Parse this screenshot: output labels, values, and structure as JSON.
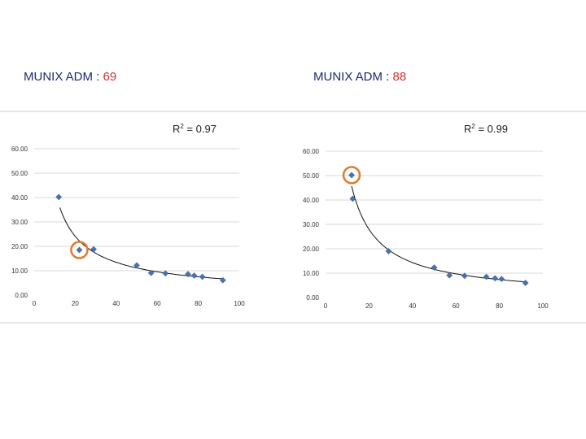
{
  "charts": [
    {
      "heading_label": "MUNIX ADM : ",
      "heading_value": "69",
      "r2_prefix": "R",
      "r2_sup": "2",
      "r2_value": " = 0.97"
    },
    {
      "heading_label": "MUNIX ADM : ",
      "heading_value": "88",
      "r2_prefix": "R",
      "r2_sup": "2",
      "r2_value": " = 0.99"
    }
  ],
  "colors": {
    "heading_text": "#1f2a6b",
    "heading_value": "#d0312d",
    "marker": "#4a72b0",
    "highlight_ring": "#e07b2a",
    "trend_line": "#111111",
    "gridline": "#d9d9d9"
  },
  "chart_data": [
    {
      "type": "scatter",
      "title": "MUNIX ADM : 69",
      "annotation": "R2 = 0.97",
      "trendline": "power",
      "xlim": [
        0,
        100
      ],
      "ylim": [
        0,
        60
      ],
      "xticks": [
        0,
        20,
        40,
        60,
        80,
        100
      ],
      "yticks": [
        "0.00",
        "10.00",
        "20.00",
        "30.00",
        "40.00",
        "50.00",
        "60.00"
      ],
      "grid": "horizontal",
      "points": [
        {
          "x": 12,
          "y": 40.2
        },
        {
          "x": 22,
          "y": 18.5,
          "highlighted": true
        },
        {
          "x": 29,
          "y": 18.8
        },
        {
          "x": 50,
          "y": 12.2
        },
        {
          "x": 57,
          "y": 9.1
        },
        {
          "x": 64,
          "y": 8.9
        },
        {
          "x": 75,
          "y": 8.6
        },
        {
          "x": 78,
          "y": 8.0
        },
        {
          "x": 82,
          "y": 7.5
        },
        {
          "x": 92,
          "y": 6.1
        }
      ],
      "trend_x_start": 12.5,
      "trend_x_end": 92
    },
    {
      "type": "scatter",
      "title": "MUNIX ADM : 88",
      "annotation": "R2 = 0.99",
      "trendline": "power",
      "xlim": [
        0,
        100
      ],
      "ylim": [
        0,
        60
      ],
      "xticks": [
        0,
        20,
        40,
        60,
        80,
        100
      ],
      "yticks": [
        "0.00",
        "10.00",
        "20.00",
        "30.00",
        "40.00",
        "50.00",
        "60.00"
      ],
      "grid": "horizontal",
      "points": [
        {
          "x": 12,
          "y": 50.2,
          "highlighted": true
        },
        {
          "x": 12.5,
          "y": 40.5
        },
        {
          "x": 29,
          "y": 19.0
        },
        {
          "x": 50,
          "y": 12.3
        },
        {
          "x": 57,
          "y": 9.1
        },
        {
          "x": 64,
          "y": 8.9
        },
        {
          "x": 74,
          "y": 8.5
        },
        {
          "x": 78,
          "y": 7.9
        },
        {
          "x": 81,
          "y": 7.6
        },
        {
          "x": 92,
          "y": 6.0
        }
      ],
      "trend_x_start": 12,
      "trend_x_end": 92
    }
  ]
}
